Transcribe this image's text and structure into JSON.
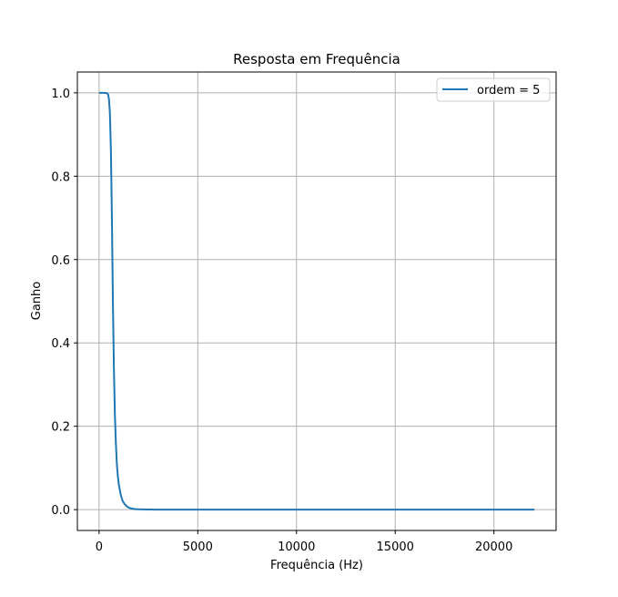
{
  "chart_data": {
    "type": "line",
    "title": "Resposta em Frequência",
    "xlabel": "Frequência (Hz)",
    "ylabel": "Ganho",
    "xlim": [
      -1100,
      23150
    ],
    "ylim": [
      -0.05,
      1.05
    ],
    "xticks": [
      0,
      5000,
      10000,
      15000,
      20000
    ],
    "xtick_labels": [
      "0",
      "5000",
      "10000",
      "15000",
      "20000"
    ],
    "yticks": [
      0.0,
      0.2,
      0.4,
      0.6,
      0.8,
      1.0
    ],
    "ytick_labels": [
      "0.0",
      "0.2",
      "0.4",
      "0.6",
      "0.8",
      "1.0"
    ],
    "grid": true,
    "legend_position": "top-right",
    "colors": {
      "series": "#1f77b4",
      "grid": "#b0b0b0",
      "axes": "#000000"
    },
    "series": [
      {
        "name": "ordem = 5",
        "x": [
          0,
          100,
          200,
          300,
          400,
          450,
          500,
          550,
          600,
          650,
          700,
          750,
          800,
          850,
          900,
          950,
          1000,
          1100,
          1200,
          1300,
          1400,
          1500,
          1600,
          1800,
          2000,
          2500,
          3000,
          4000,
          5000,
          10000,
          15000,
          20000,
          22050
        ],
        "y": [
          1.0,
          1.0,
          1.0,
          1.0,
          0.999,
          0.997,
          0.985,
          0.95,
          0.86,
          0.7,
          0.5,
          0.34,
          0.23,
          0.16,
          0.11,
          0.08,
          0.06,
          0.035,
          0.02,
          0.013,
          0.008,
          0.005,
          0.003,
          0.0015,
          0.0008,
          0.0002,
          0.0001,
          0.0,
          0.0,
          0.0,
          0.0,
          0.0,
          0.0
        ]
      }
    ]
  }
}
